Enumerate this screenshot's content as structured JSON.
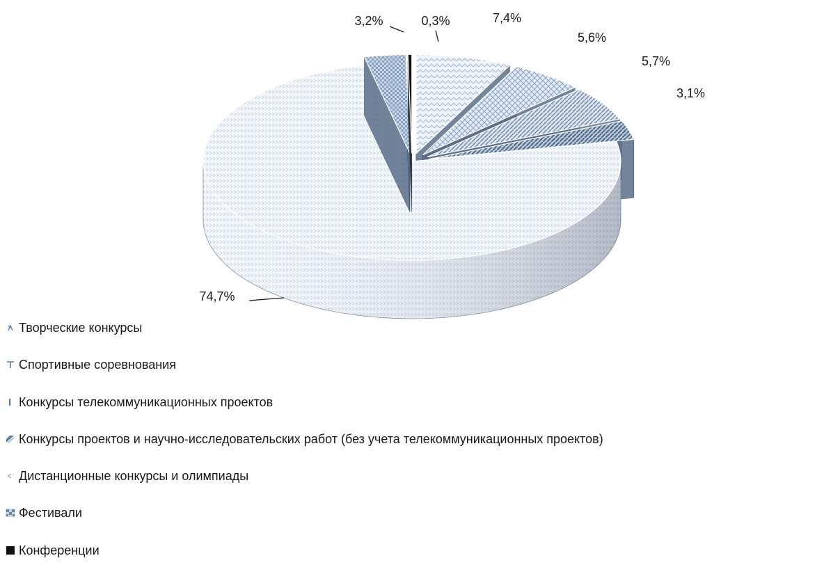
{
  "chart_data": {
    "type": "pie",
    "categories": [
      "Творческие конкурсы",
      "Спортивные соревнования",
      "Конкурсы телекоммуникационных проектов",
      "Конкурсы проектов и научно-исследовательских работ (без учета телекоммуникационных проектов)",
      "Дистанционные конкурсы и олимпиады",
      "Фестивали",
      "Конференции"
    ],
    "values": [
      7.4,
      5.6,
      5.7,
      3.1,
      74.7,
      3.2,
      0.3
    ],
    "labels": [
      "7,4%",
      "5,6%",
      "5,7%",
      "3,1%",
      "74,7%",
      "3,2%",
      "0,3%"
    ],
    "colors": [
      "#eef3fa",
      "#dde7f2",
      "#c9d6e6",
      "#4f6580",
      "#f1f5fb",
      "#b8c8dc",
      "#111111"
    ],
    "legend_position": "bottom-left",
    "style": "3d-exploded"
  },
  "legend": {
    "items": [
      {
        "label": "Творческие конкурсы",
        "icon": "lambda-pattern-icon"
      },
      {
        "label": "Спортивные соревнования",
        "icon": "t-pattern-icon"
      },
      {
        "label": "Конкурсы телекоммуникационных проектов",
        "icon": "bar-pattern-icon"
      },
      {
        "label": "Конкурсы проектов и научно-исследовательских работ (без учета телекоммуникационных проектов)",
        "icon": "diagonal-pattern-icon"
      },
      {
        "label": "Дистанционные конкурсы и олимпиады",
        "icon": "chevron-pattern-icon"
      },
      {
        "label": "Фестивали",
        "icon": "checker-pattern-icon"
      },
      {
        "label": "Конференции",
        "icon": "solid-square-icon"
      }
    ]
  }
}
